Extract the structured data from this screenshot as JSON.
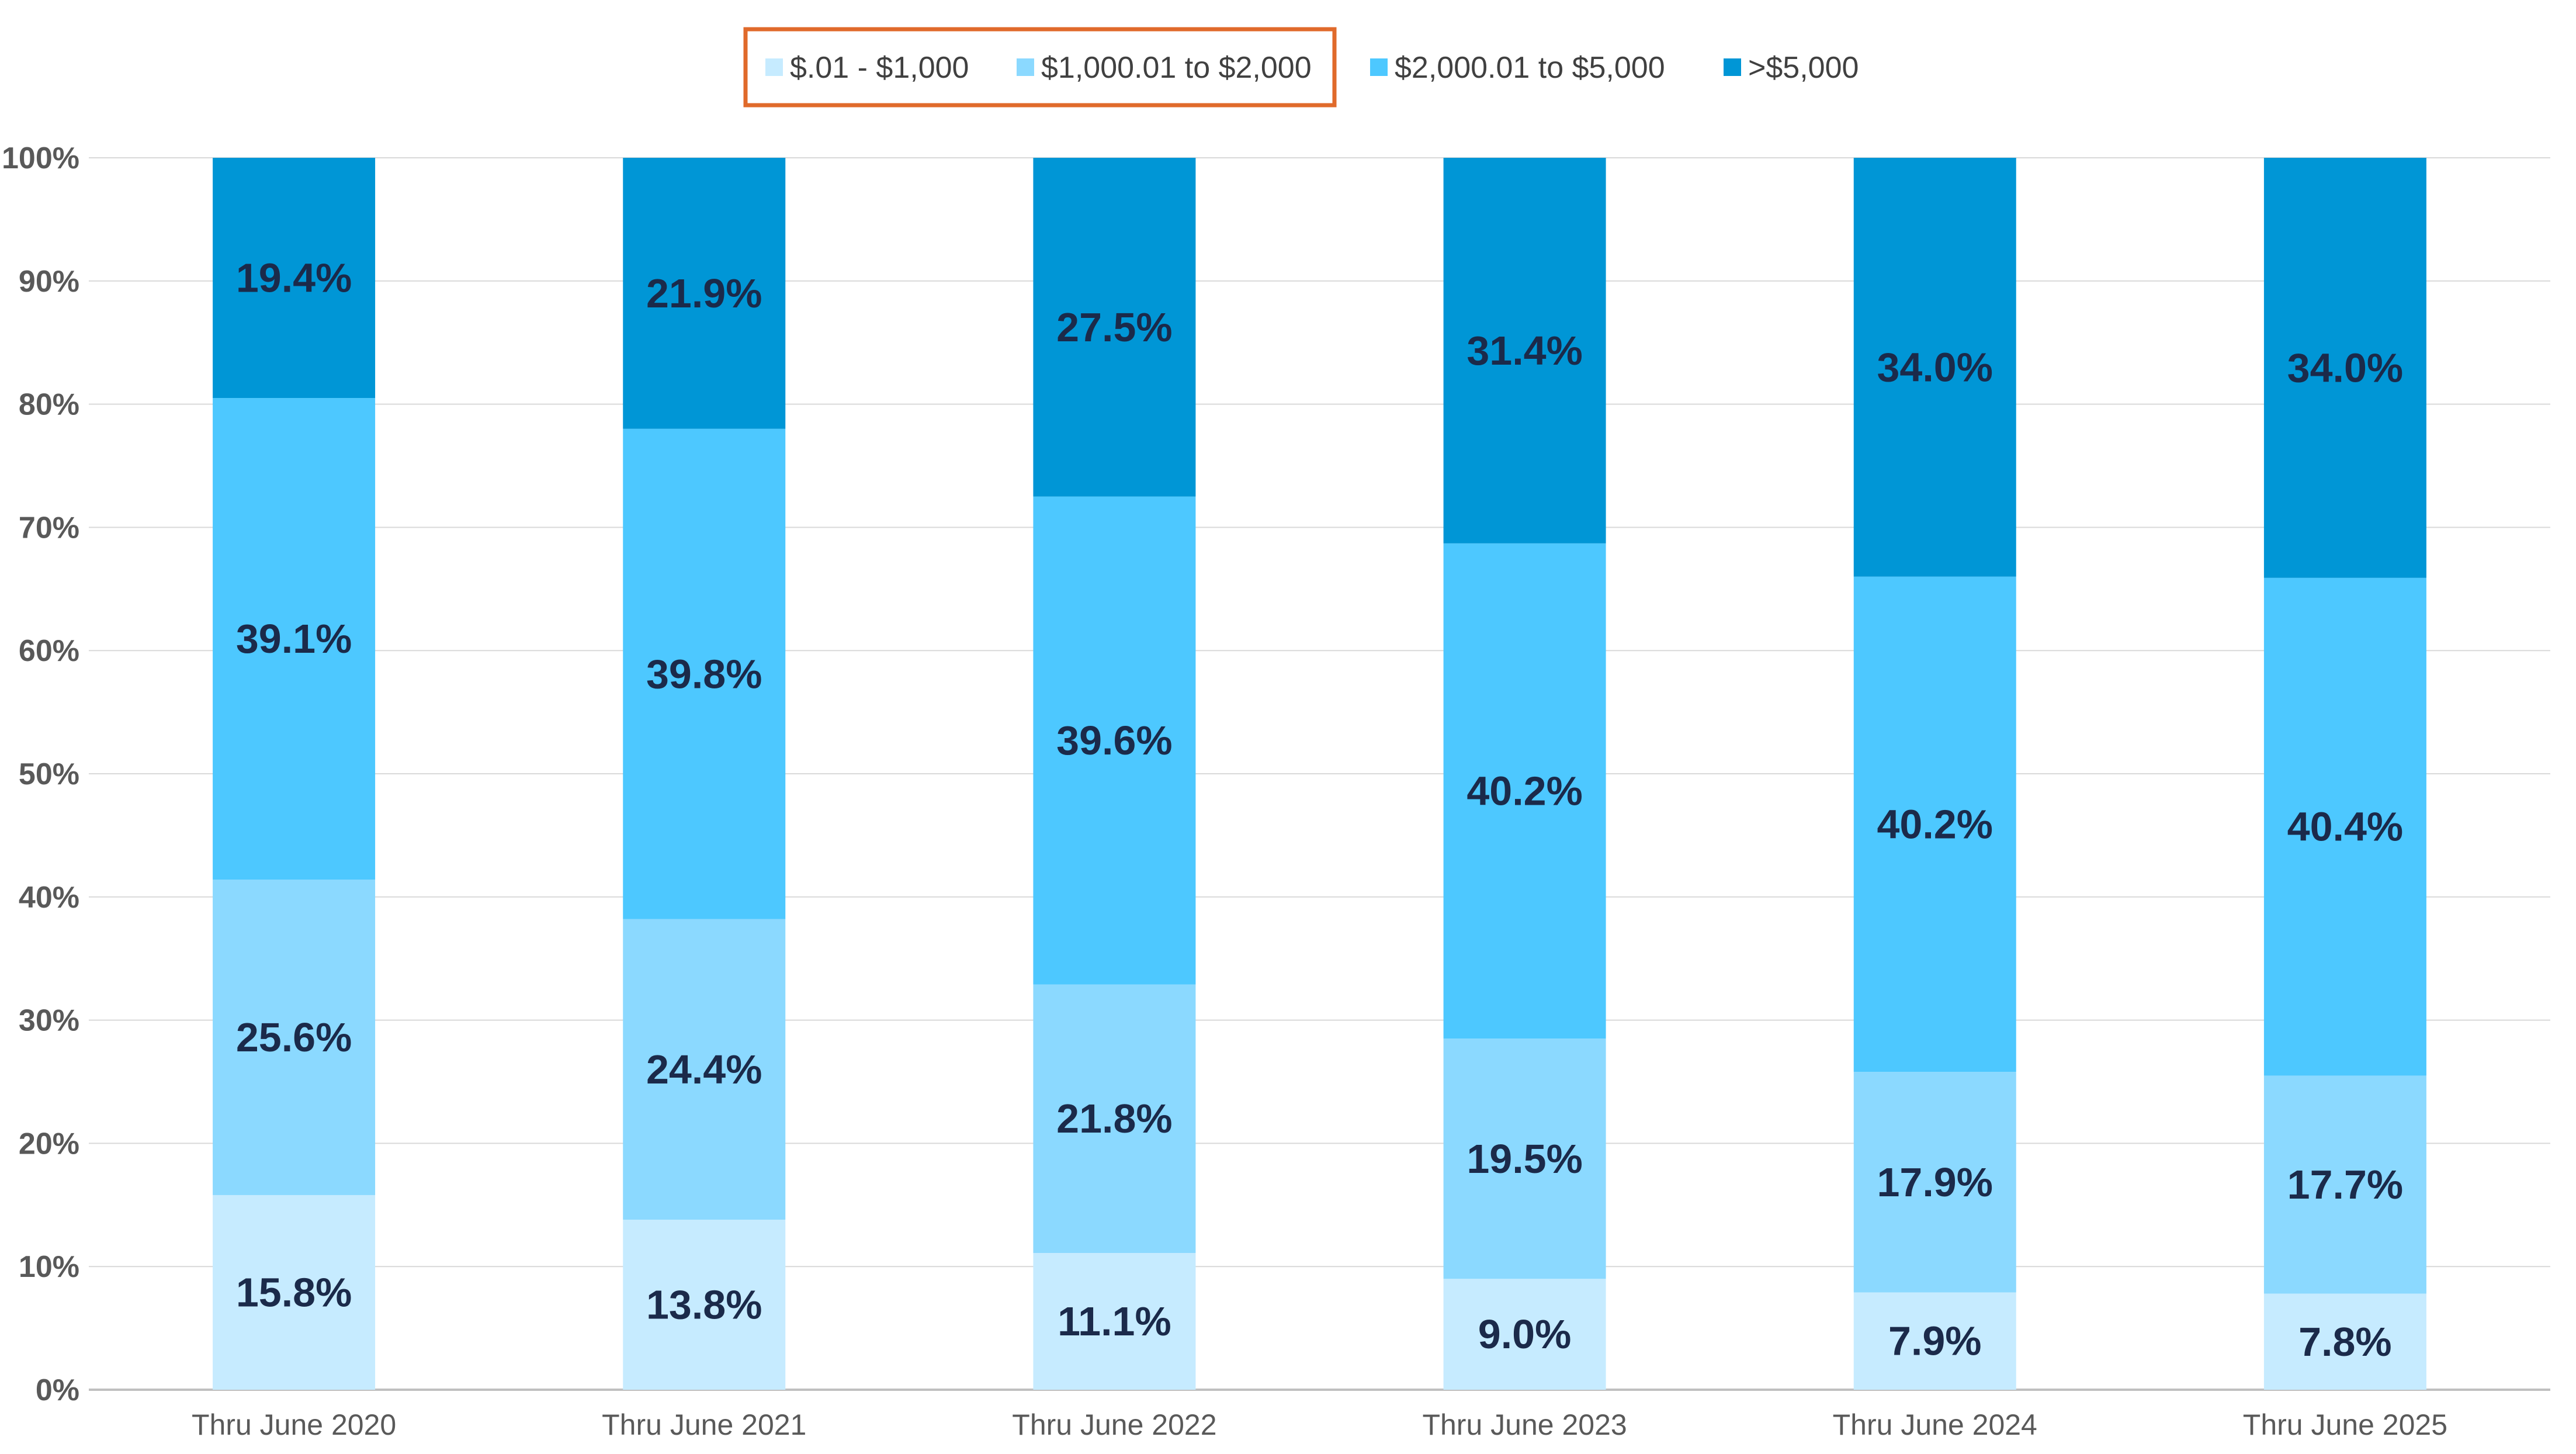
{
  "chart_data": {
    "type": "bar",
    "stacked": true,
    "title": "",
    "xlabel": "",
    "ylabel": "",
    "ylim": [
      0,
      100
    ],
    "y_ticks": [
      "0%",
      "10%",
      "20%",
      "30%",
      "40%",
      "50%",
      "60%",
      "70%",
      "80%",
      "90%",
      "100%"
    ],
    "y_tick_values": [
      0,
      10,
      20,
      30,
      40,
      50,
      60,
      70,
      80,
      90,
      100
    ],
    "grid": true,
    "legend_position": "top",
    "legend_highlight": "orange box around \"$.01 - $1,000\" and \"$1,000.01 to $2,000\"",
    "highlight_color": "#E06A2B",
    "categories": [
      "Thru June 2020",
      "Thru June 2021",
      "Thru June 2022",
      "Thru June 2023",
      "Thru June 2024",
      "Thru June 2025"
    ],
    "series": [
      {
        "name": "$.01 - $1,000",
        "color": "#C6EBFF",
        "values": [
          15.8,
          13.8,
          11.1,
          9.0,
          7.9,
          7.8
        ],
        "labels": [
          "15.8%",
          "13.8%",
          "11.1%",
          "9.0%",
          "7.9%",
          "7.8%"
        ]
      },
      {
        "name": "$1,000.01 to $2,000",
        "color": "#8BD9FF",
        "values": [
          25.6,
          24.4,
          21.8,
          19.5,
          17.9,
          17.7
        ],
        "labels": [
          "25.6%",
          "24.4%",
          "21.8%",
          "19.5%",
          "17.9%",
          "17.7%"
        ]
      },
      {
        "name": "$2,000.01 to $5,000",
        "color": "#4DC8FF",
        "values": [
          39.1,
          39.8,
          39.6,
          40.2,
          40.2,
          40.4
        ],
        "labels": [
          "39.1%",
          "39.8%",
          "39.6%",
          "40.2%",
          "40.2%",
          "40.4%"
        ]
      },
      {
        "name": ">$5,000",
        "color": "#0096D6",
        "values": [
          19.4,
          21.9,
          27.5,
          31.4,
          34.0,
          34.0
        ],
        "labels": [
          "19.4%",
          "21.9%",
          "27.5%",
          "31.4%",
          "34.0%",
          "34.0%"
        ]
      }
    ]
  }
}
